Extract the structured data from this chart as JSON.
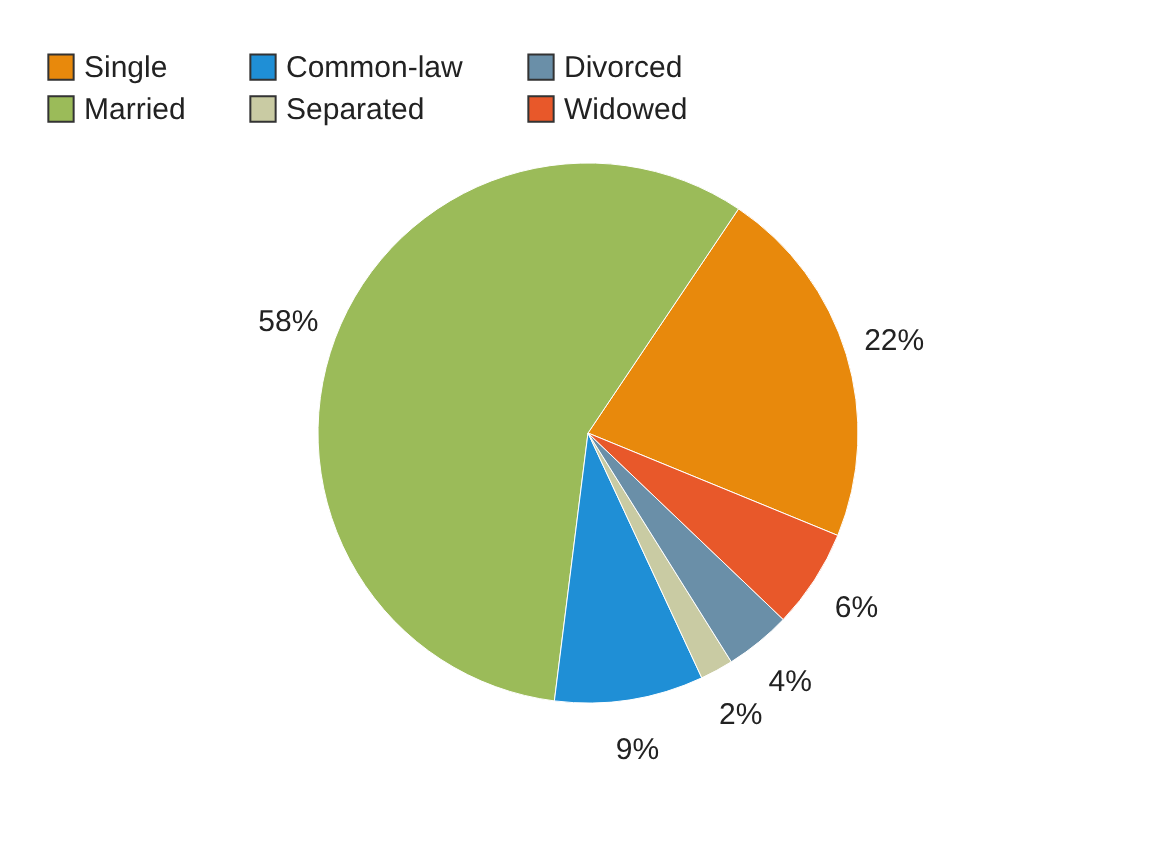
{
  "chart_data": {
    "type": "pie",
    "categories": [
      "Single",
      "Married",
      "Common-law",
      "Separated",
      "Divorced",
      "Widowed"
    ],
    "values": [
      22,
      58,
      9,
      2,
      4,
      6
    ],
    "colors": [
      "#e8890c",
      "#9bbb59",
      "#1f8fd6",
      "#c9cba3",
      "#6a8fa8",
      "#e8582a"
    ],
    "value_labels": [
      "22%",
      "58%",
      "9%",
      "2%",
      "4%",
      "6%"
    ],
    "legend": "top left"
  }
}
